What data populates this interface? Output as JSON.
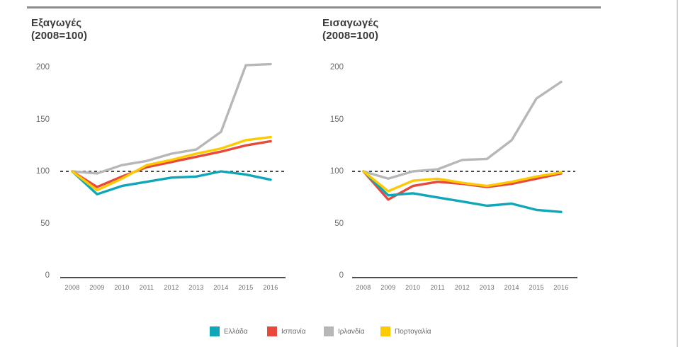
{
  "header": {
    "left_title": "Εξαγωγές",
    "left_subtitle": "(2008=100)",
    "right_title": "Εισαγωγές",
    "right_subtitle": "(2008=100)"
  },
  "colors": {
    "greece": "#0fa7b7",
    "spain": "#e8493c",
    "ireland": "#b7b7b7",
    "portugal": "#fdca00",
    "reference_line": "#4a4a4a",
    "axis_line": "#4f4f4e",
    "tick_text": "#6c6c6c",
    "title_text": "#3b3b3a",
    "top_rule": "#8d8d8d"
  },
  "legend": {
    "items": [
      {
        "key": "greece",
        "label": "Ελλάδα"
      },
      {
        "key": "spain",
        "label": "Ισπανία"
      },
      {
        "key": "ireland",
        "label": "Ιρλανδία"
      },
      {
        "key": "portugal",
        "label": "Πορτογαλία"
      }
    ]
  },
  "chart_data": [
    {
      "type": "line",
      "id": "exports",
      "title": "Εξαγωγές",
      "subtitle": "(2008=100)",
      "x": [
        2008,
        2009,
        2010,
        2011,
        2012,
        2013,
        2014,
        2015,
        2016
      ],
      "ylim": [
        0,
        200
      ],
      "yticks": [
        0,
        50,
        100,
        150,
        200
      ],
      "reference_line_y": 100,
      "grid": false,
      "legend_position": "bottom",
      "series": [
        {
          "key": "ireland",
          "name": "Ιρλανδία",
          "values": [
            100,
            98,
            106,
            110,
            117,
            121,
            138,
            202,
            203
          ]
        },
        {
          "key": "spain",
          "name": "Ισπανία",
          "values": [
            100,
            85,
            95,
            104,
            109,
            114,
            119,
            125,
            129
          ]
        },
        {
          "key": "greece",
          "name": "Ελλάδα",
          "values": [
            100,
            78,
            86,
            90,
            94,
            95,
            100,
            97,
            92
          ]
        },
        {
          "key": "portugal",
          "name": "Πορτογαλία",
          "values": [
            100,
            82,
            93,
            106,
            111,
            117,
            122,
            130,
            133
          ]
        }
      ]
    },
    {
      "type": "line",
      "id": "imports",
      "title": "Εισαγωγές",
      "subtitle": "(2008=100)",
      "x": [
        2008,
        2009,
        2010,
        2011,
        2012,
        2013,
        2014,
        2015,
        2016
      ],
      "ylim": [
        0,
        200
      ],
      "yticks": [
        0,
        50,
        100,
        150,
        200
      ],
      "reference_line_y": 100,
      "grid": false,
      "legend_position": "bottom",
      "series": [
        {
          "key": "ireland",
          "name": "Ιρλανδία",
          "values": [
            100,
            93,
            100,
            102,
            111,
            112,
            130,
            170,
            186
          ]
        },
        {
          "key": "spain",
          "name": "Ισπανία",
          "values": [
            100,
            73,
            86,
            90,
            88,
            85,
            88,
            93,
            98
          ]
        },
        {
          "key": "greece",
          "name": "Ελλάδα",
          "values": [
            100,
            77,
            79,
            75,
            71,
            67,
            69,
            63,
            61
          ]
        },
        {
          "key": "portugal",
          "name": "Πορτογαλία",
          "values": [
            100,
            81,
            91,
            93,
            89,
            86,
            90,
            95,
            99
          ]
        }
      ]
    }
  ]
}
